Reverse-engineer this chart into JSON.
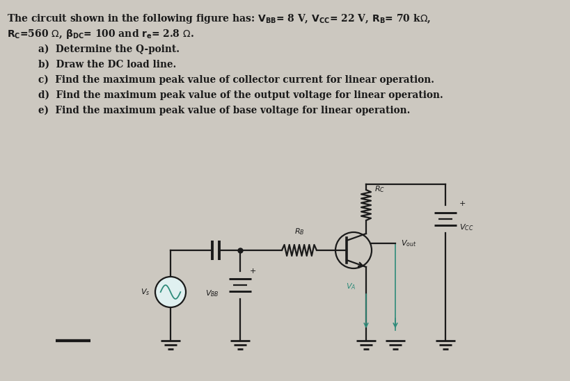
{
  "bg_color": "#ccc8c0",
  "line_color": "#1a1a1a",
  "teal_color": "#2e8b7a",
  "figsize": [
    8.2,
    5.48
  ],
  "dpi": 100,
  "text_line1": "The circuit shown in the following figure has: $V_{BB}$= 8 V, $V_{CC}$= 22 V, $R_B$= 70 kΩ,",
  "text_line2": "$R_C$=560 Ω, $\\beta_{DC}$= 100 and $r_e$= 2.8 Ω.",
  "items": [
    "a)  Determine the Q-point.",
    "b)  Draw the DC load line.",
    "c)  Find the maximum peak value of collector current for linear operation.",
    "d)  Find the maximum peak value of the output voltage for linear operation.",
    "e)  Find the maximum peak value of base voltage for linear operation."
  ]
}
